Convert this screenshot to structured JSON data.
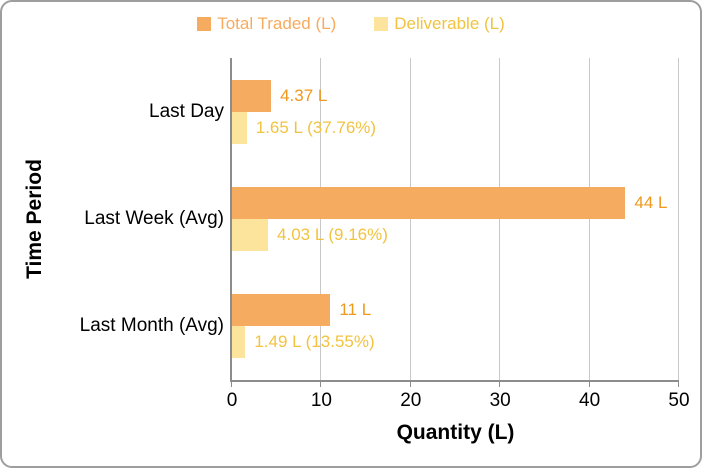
{
  "chart_data": {
    "type": "bar",
    "orientation": "horizontal",
    "categories": [
      "Last Day",
      "Last Week (Avg)",
      "Last Month (Avg)"
    ],
    "series": [
      {
        "name": "Total Traded (L)",
        "values": [
          4.37,
          44,
          11
        ],
        "labels": [
          "4.37 L",
          "44 L",
          "11 L"
        ],
        "bar_color": "#F5AC61",
        "label_color": "#F0981B",
        "legend_text_color": "#F6AB5E"
      },
      {
        "name": "Deliverable (L)",
        "values": [
          1.65,
          4.03,
          1.49
        ],
        "labels": [
          "1.65 L (37.76%)",
          "4.03 L (9.16%)",
          "1.49 L (13.55%)"
        ],
        "bar_color": "#FCE49C",
        "label_color": "#F2C340",
        "legend_text_color": "#F2C340"
      }
    ],
    "xlabel": "Quantity (L)",
    "ylabel": "Time Period",
    "xlim": [
      0,
      50
    ],
    "xticks": [
      0,
      10,
      20,
      30,
      40,
      50
    ],
    "grid": true,
    "legend_position": "top"
  },
  "colors": {
    "gridline": "#C9C9C9",
    "axis_line": "#8C8C8C",
    "card_border": "#9E9E9E",
    "background": "#FFFFFF",
    "axis_text": "#000000"
  }
}
